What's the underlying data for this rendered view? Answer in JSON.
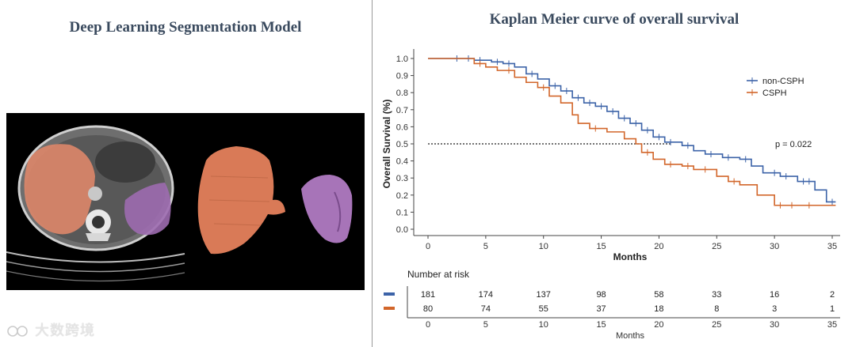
{
  "left_panel": {
    "title": "Deep Learning Segmentation Model",
    "watermark": "大数跨境",
    "colors": {
      "liver": "#e0876a",
      "spleen": "#9d6cb0",
      "background": "#000000"
    }
  },
  "chart_data": {
    "type": "line",
    "title": "Kaplan Meier curve of overall survival",
    "xlabel": "Months",
    "ylabel": "Overall Survival (%)",
    "xlim": [
      0,
      35
    ],
    "ylim": [
      0,
      1
    ],
    "xticks": [
      0,
      5,
      10,
      15,
      20,
      25,
      30,
      35
    ],
    "yticks": [
      "0.0",
      "0.1",
      "0.2",
      "0.3",
      "0.4",
      "0.5",
      "0.6",
      "0.7",
      "0.8",
      "0.9",
      "1.0"
    ],
    "legend_position": "top-right",
    "annotation": "p = 0.022",
    "reference_line_y": 0.5,
    "series": [
      {
        "name": "non-CSPH",
        "color": "#3c63a8",
        "steps": [
          [
            0,
            1.0
          ],
          [
            2,
            1.0
          ],
          [
            4,
            0.99
          ],
          [
            5.5,
            0.98
          ],
          [
            6.5,
            0.97
          ],
          [
            7.5,
            0.95
          ],
          [
            8.5,
            0.91
          ],
          [
            9.5,
            0.88
          ],
          [
            10.5,
            0.84
          ],
          [
            11.5,
            0.81
          ],
          [
            12.5,
            0.77
          ],
          [
            13.5,
            0.74
          ],
          [
            14.5,
            0.72
          ],
          [
            15.5,
            0.69
          ],
          [
            16.5,
            0.65
          ],
          [
            17.5,
            0.62
          ],
          [
            18.5,
            0.58
          ],
          [
            19.5,
            0.54
          ],
          [
            20.5,
            0.51
          ],
          [
            22,
            0.49
          ],
          [
            23,
            0.46
          ],
          [
            24,
            0.44
          ],
          [
            25.5,
            0.42
          ],
          [
            27,
            0.41
          ],
          [
            28,
            0.37
          ],
          [
            29,
            0.33
          ],
          [
            30.5,
            0.31
          ],
          [
            32,
            0.28
          ],
          [
            33.5,
            0.23
          ],
          [
            34.5,
            0.16
          ],
          [
            35.3,
            0.16
          ]
        ],
        "censored": [
          2.5,
          3.5,
          4.5,
          6,
          7,
          9,
          11,
          12,
          13,
          14,
          15,
          16,
          17,
          18,
          19,
          20,
          21,
          22.5,
          24.5,
          26,
          27.5,
          30,
          31,
          32.5,
          33,
          35
        ]
      },
      {
        "name": "CSPH",
        "color": "#d2662a",
        "steps": [
          [
            0,
            1.0
          ],
          [
            3,
            1.0
          ],
          [
            4,
            0.97
          ],
          [
            5,
            0.95
          ],
          [
            6,
            0.93
          ],
          [
            7.5,
            0.89
          ],
          [
            8.5,
            0.86
          ],
          [
            9.5,
            0.83
          ],
          [
            10.5,
            0.78
          ],
          [
            11.5,
            0.74
          ],
          [
            12.5,
            0.67
          ],
          [
            13,
            0.62
          ],
          [
            14,
            0.59
          ],
          [
            15.5,
            0.57
          ],
          [
            17,
            0.53
          ],
          [
            18,
            0.5
          ],
          [
            18.5,
            0.45
          ],
          [
            19.5,
            0.41
          ],
          [
            20.5,
            0.38
          ],
          [
            22,
            0.37
          ],
          [
            23,
            0.35
          ],
          [
            25,
            0.31
          ],
          [
            26,
            0.28
          ],
          [
            27,
            0.26
          ],
          [
            28.5,
            0.2
          ],
          [
            30,
            0.14
          ],
          [
            35.3,
            0.14
          ]
        ],
        "censored": [
          4.5,
          7,
          10,
          14.5,
          19,
          21,
          22.5,
          24,
          26.5,
          30.5,
          31.5,
          33
        ]
      }
    ],
    "risk_table": {
      "title": "Number at risk",
      "columns": [
        "0",
        "5",
        "10",
        "15",
        "20",
        "25",
        "30",
        "35"
      ],
      "rows": [
        {
          "name": "non-CSPH",
          "values": [
            "181",
            "174",
            "137",
            "98",
            "58",
            "33",
            "16",
            "2"
          ]
        },
        {
          "name": "CSPH",
          "values": [
            "80",
            "74",
            "55",
            "37",
            "18",
            "8",
            "3",
            "1"
          ]
        }
      ],
      "xlabel": "Months"
    }
  }
}
